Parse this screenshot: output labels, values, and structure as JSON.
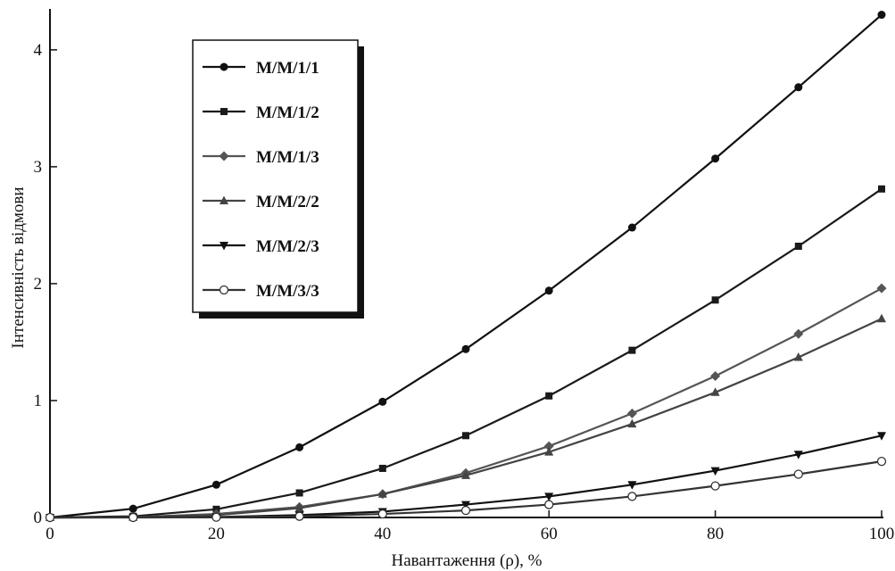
{
  "chart_data": {
    "type": "line",
    "title": "",
    "xlabel": "Навантаження (ρ), %",
    "ylabel": "Інтенсивність відмови",
    "x": [
      0,
      10,
      20,
      30,
      40,
      50,
      60,
      70,
      80,
      90,
      100
    ],
    "xlim": [
      0,
      100
    ],
    "ylim": [
      0,
      4.35
    ],
    "xticks": [
      0,
      20,
      40,
      60,
      80,
      100
    ],
    "yticks": [
      0,
      1,
      2,
      3,
      4
    ],
    "grid": false,
    "legend_position": "top-left",
    "series": [
      {
        "name": "M/M/1/1",
        "marker": "circle-filled",
        "color": "#111111",
        "values": [
          0,
          0.075,
          0.28,
          0.6,
          0.99,
          1.44,
          1.94,
          2.48,
          3.07,
          3.68,
          4.3
        ]
      },
      {
        "name": "M/M/1/2",
        "marker": "square",
        "color": "#1a1a1a",
        "values": [
          0,
          0.01,
          0.07,
          0.21,
          0.42,
          0.7,
          1.04,
          1.43,
          1.86,
          2.32,
          2.81
        ]
      },
      {
        "name": "M/M/1/3",
        "marker": "diamond",
        "color": "#555555",
        "values": [
          0,
          0.003,
          0.03,
          0.09,
          0.2,
          0.38,
          0.61,
          0.89,
          1.21,
          1.57,
          1.96
        ]
      },
      {
        "name": "M/M/2/2",
        "marker": "triangle-up",
        "color": "#444444",
        "values": [
          0,
          0.002,
          0.02,
          0.08,
          0.2,
          0.36,
          0.56,
          0.8,
          1.07,
          1.37,
          1.7
        ]
      },
      {
        "name": "M/M/2/3",
        "marker": "triangle-down",
        "color": "#111111",
        "values": [
          0,
          0.0005,
          0.004,
          0.02,
          0.05,
          0.11,
          0.18,
          0.28,
          0.4,
          0.54,
          0.7
        ]
      },
      {
        "name": "M/M/3/3",
        "marker": "circle-open",
        "color": "#333333",
        "values": [
          0,
          0.0002,
          0.002,
          0.01,
          0.03,
          0.06,
          0.11,
          0.18,
          0.27,
          0.37,
          0.48
        ]
      }
    ]
  }
}
